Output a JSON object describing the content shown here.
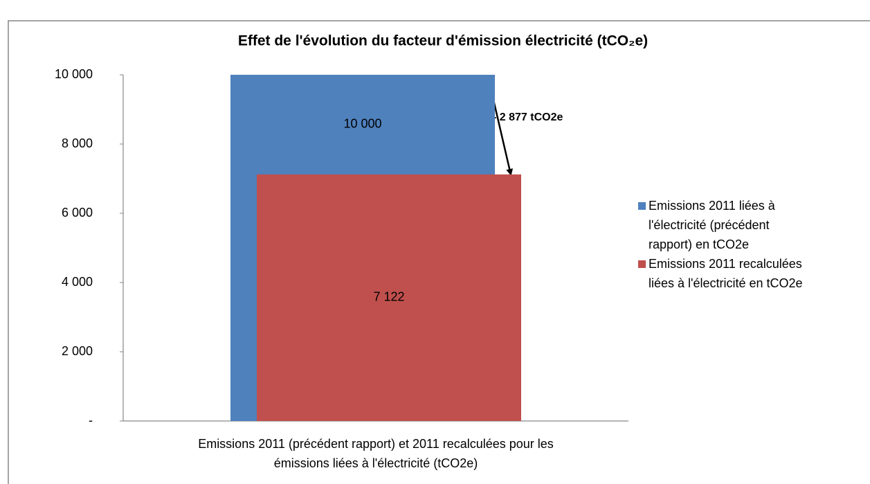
{
  "chart_data": {
    "type": "bar",
    "title": "Effet de l'évolution du facteur d'émission électricité (tCO₂e)",
    "categories": [
      "Emissions 2011 (précédent rapport) et 2011 recalculées pour les émissions liées à l'électricité (tCO2e)"
    ],
    "series": [
      {
        "name": "Emissions 2011 liées à l'électricité (précédent rapport) en tCO2e",
        "color": "#4f81bd",
        "values": [
          10000
        ],
        "value_labels": [
          "10 000"
        ]
      },
      {
        "name": "Emissions 2011 recalculées liées à l'électricité en tCO2e",
        "color": "#c0504d",
        "values": [
          7122
        ],
        "value_labels": [
          "7 122"
        ]
      }
    ],
    "ylim": [
      0,
      10000
    ],
    "yticks": [
      {
        "value": 0,
        "label": "-"
      },
      {
        "value": 2000,
        "label": "2 000"
      },
      {
        "value": 4000,
        "label": "4 000"
      },
      {
        "value": 6000,
        "label": "6 000"
      },
      {
        "value": 8000,
        "label": "8 000"
      },
      {
        "value": 10000,
        "label": "10 000"
      }
    ],
    "grid": false,
    "legend": "right",
    "annotations": [
      "- 2 877 tCO2e"
    ]
  }
}
